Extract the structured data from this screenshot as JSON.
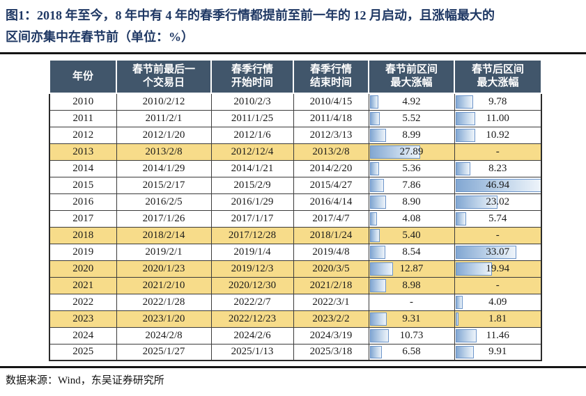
{
  "title": {
    "line1": "图1：2018 年至今，8 年中有 4 年的春季行情都提前至前一年的 12 月启动，且涨幅最大的",
    "line2": "区间亦集中在春节前（单位：%）"
  },
  "footer": {
    "source": "数据来源：Wind，东吴证券研究所"
  },
  "colors": {
    "title_text": "#1f3864",
    "header_bg": "#41566b",
    "header_text": "#ffffff",
    "highlight_row": "#f7dc8a",
    "bar_fill_start": "#82a7d2",
    "bar_fill_end": "#eef4fa",
    "bar_border": "#6b94c9"
  },
  "chart_data": {
    "type": "table",
    "title": "图1：2018 年至今，8 年中有 4 年的春季行情都提前至前一年的 12 月启动，且涨幅最大的区间亦集中在春节前（单位：%）",
    "unit": "%",
    "bar_scale_max": 46.94,
    "columns": [
      "年份",
      "春节前最后一\n个交易日",
      "春季行情\n开始时间",
      "春季行情\n结束时间",
      "春节前区间\n最大涨幅",
      "春节后区间\n最大涨幅"
    ],
    "rows": [
      {
        "year": "2010",
        "last_trading_day": "2010/2/12",
        "start": "2010/2/3",
        "end": "2010/4/15",
        "pre_gain": "4.92",
        "post_gain": "9.78",
        "highlight": false
      },
      {
        "year": "2011",
        "last_trading_day": "2011/2/1",
        "start": "2011/1/25",
        "end": "2011/4/18",
        "pre_gain": "5.52",
        "post_gain": "11.00",
        "highlight": false
      },
      {
        "year": "2012",
        "last_trading_day": "2012/1/20",
        "start": "2012/1/6",
        "end": "2012/3/13",
        "pre_gain": "8.99",
        "post_gain": "10.92",
        "highlight": false
      },
      {
        "year": "2013",
        "last_trading_day": "2013/2/8",
        "start": "2012/12/4",
        "end": "2013/2/8",
        "pre_gain": "27.89",
        "post_gain": "-",
        "highlight": true
      },
      {
        "year": "2014",
        "last_trading_day": "2014/1/29",
        "start": "2014/1/21",
        "end": "2014/2/20",
        "pre_gain": "5.36",
        "post_gain": "8.23",
        "highlight": false
      },
      {
        "year": "2015",
        "last_trading_day": "2015/2/17",
        "start": "2015/2/9",
        "end": "2015/4/27",
        "pre_gain": "7.86",
        "post_gain": "46.94",
        "highlight": false
      },
      {
        "year": "2016",
        "last_trading_day": "2016/2/5",
        "start": "2016/1/29",
        "end": "2016/4/14",
        "pre_gain": "8.90",
        "post_gain": "23.02",
        "highlight": false
      },
      {
        "year": "2017",
        "last_trading_day": "2017/1/26",
        "start": "2017/1/17",
        "end": "2017/4/7",
        "pre_gain": "4.08",
        "post_gain": "5.74",
        "highlight": false
      },
      {
        "year": "2018",
        "last_trading_day": "2018/2/14",
        "start": "2017/12/28",
        "end": "2018/1/24",
        "pre_gain": "5.40",
        "post_gain": "-",
        "highlight": true
      },
      {
        "year": "2019",
        "last_trading_day": "2019/2/1",
        "start": "2019/1/4",
        "end": "2019/4/8",
        "pre_gain": "8.54",
        "post_gain": "33.07",
        "highlight": false
      },
      {
        "year": "2020",
        "last_trading_day": "2020/1/23",
        "start": "2019/12/3",
        "end": "2020/3/5",
        "pre_gain": "12.87",
        "post_gain": "19.94",
        "highlight": true
      },
      {
        "year": "2021",
        "last_trading_day": "2021/2/10",
        "start": "2020/12/30",
        "end": "2021/2/18",
        "pre_gain": "8.98",
        "post_gain": "-",
        "highlight": true
      },
      {
        "year": "2022",
        "last_trading_day": "2022/1/28",
        "start": "2022/2/7",
        "end": "2022/3/1",
        "pre_gain": "-",
        "post_gain": "4.09",
        "highlight": false
      },
      {
        "year": "2023",
        "last_trading_day": "2023/1/20",
        "start": "2022/12/23",
        "end": "2023/2/2",
        "pre_gain": "9.31",
        "post_gain": "1.81",
        "highlight": true
      },
      {
        "year": "2024",
        "last_trading_day": "2024/2/8",
        "start": "2024/2/6",
        "end": "2024/3/19",
        "pre_gain": "10.73",
        "post_gain": "11.46",
        "highlight": false
      },
      {
        "year": "2025",
        "last_trading_day": "2025/1/27",
        "start": "2025/1/13",
        "end": "2025/3/18",
        "pre_gain": "6.58",
        "post_gain": "9.91",
        "highlight": false
      }
    ]
  }
}
